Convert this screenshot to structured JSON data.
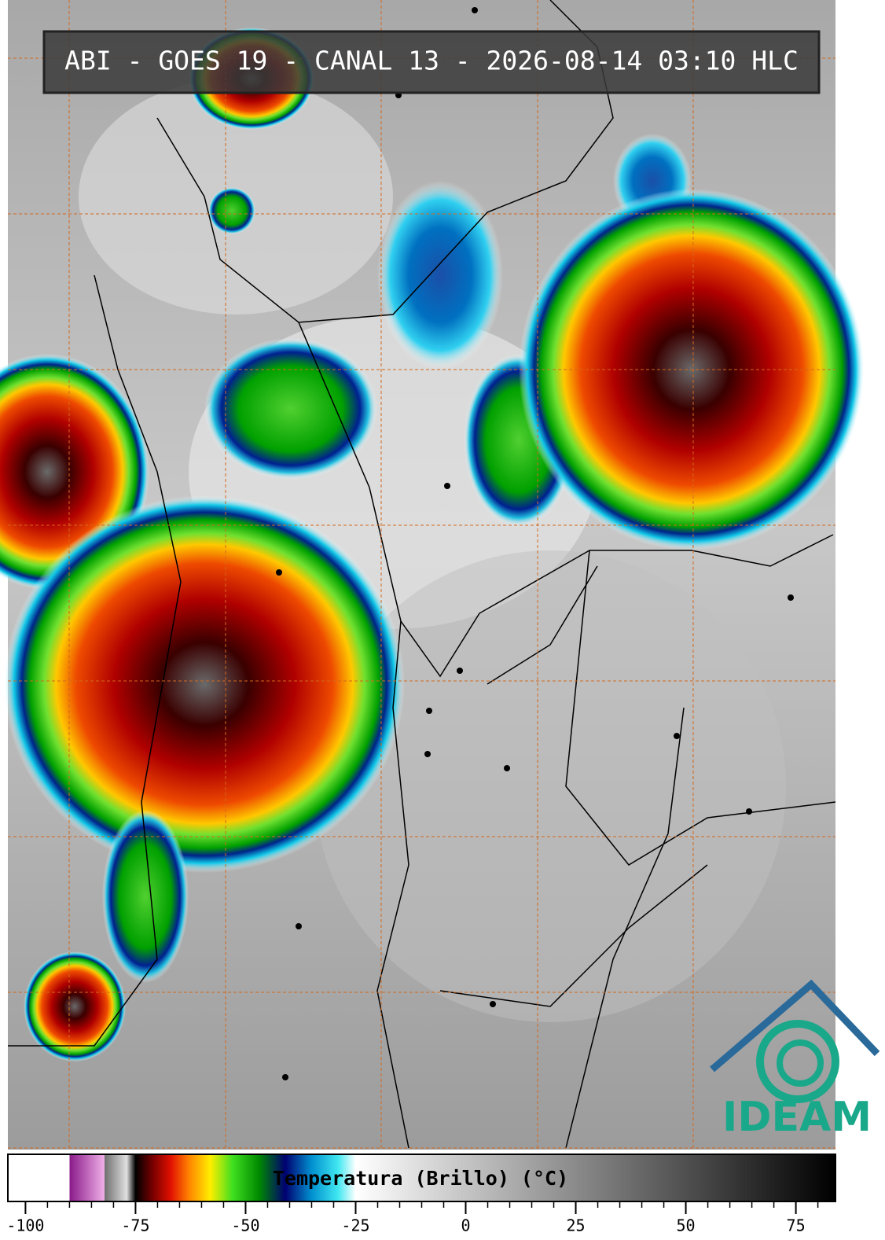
{
  "header": {
    "title": "ABI - GOES 19 - CANAL 13 - 2026-08-14 03:10 HLC"
  },
  "logo": {
    "name": "IDEAM"
  },
  "colorbar": {
    "label": "Temperatura (Brillo) (°C)",
    "xlim": [
      -104,
      84
    ],
    "xticks": [
      -100,
      -75,
      -50,
      -25,
      0,
      25,
      50,
      75
    ],
    "minor_tick_step": 5,
    "colormap": [
      {
        "value": -104,
        "color": "#ffffff"
      },
      {
        "value": -90,
        "color": "#ffffff"
      },
      {
        "value": -90,
        "color": "#8a1a8a"
      },
      {
        "value": -82,
        "color": "#f0b0e8"
      },
      {
        "value": -82,
        "color": "#707070"
      },
      {
        "value": -77,
        "color": "#e0e0e0"
      },
      {
        "value": -75,
        "color": "#000000"
      },
      {
        "value": -71,
        "color": "#7a0000"
      },
      {
        "value": -67,
        "color": "#e01000"
      },
      {
        "value": -63,
        "color": "#ff8000"
      },
      {
        "value": -58,
        "color": "#ffee00"
      },
      {
        "value": -53,
        "color": "#40e020"
      },
      {
        "value": -47,
        "color": "#008a00"
      },
      {
        "value": -41,
        "color": "#000070"
      },
      {
        "value": -35,
        "color": "#0090d0"
      },
      {
        "value": -29,
        "color": "#40e8f0"
      },
      {
        "value": -25,
        "color": "#ffffff"
      },
      {
        "value": 84,
        "color": "#000000"
      }
    ]
  }
}
